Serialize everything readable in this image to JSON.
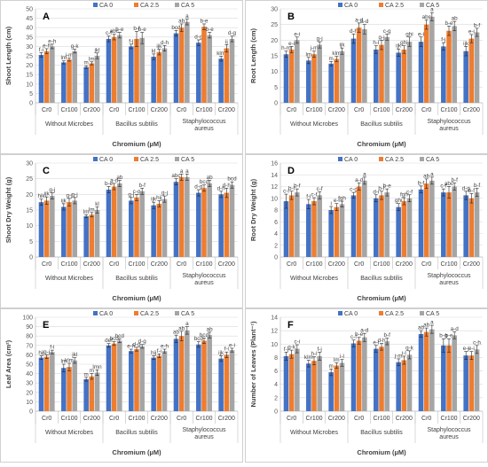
{
  "legend": {
    "series": [
      "CA 0",
      "CA 2.5",
      "CA 5"
    ],
    "colors": [
      "#4472C4",
      "#ED7D31",
      "#A5A5A5"
    ]
  },
  "x_axis": {
    "title": "Chromium (µM)",
    "groups": [
      "Without Microbes",
      "Bacillus subtilis",
      "Staphylococcus aureus"
    ],
    "levels": [
      "Cr0",
      "Cr100",
      "Cr200"
    ]
  },
  "chart_data": [
    {
      "type": "bar",
      "panel_label": "A",
      "ylabel": "Shoot Length (cm)",
      "ylim": [
        0,
        50
      ],
      "yticks": [
        0,
        5,
        10,
        15,
        20,
        25,
        30,
        35,
        40,
        45,
        50
      ],
      "categories": [
        "Cr0",
        "Cr100",
        "Cr200",
        "Cr0",
        "Cr100",
        "Cr200",
        "Cr0",
        "Cr100",
        "Cr200"
      ],
      "series": [
        {
          "name": "CA 0",
          "values": [
            25.5,
            21.5,
            19,
            34,
            30,
            24.5,
            37,
            32,
            23.5
          ],
          "errors": [
            1.2,
            0.8,
            0.7,
            1.5,
            1.2,
            1.5,
            1.5,
            1.5,
            1.3
          ]
        },
        {
          "name": "CA 2.5",
          "values": [
            27.5,
            23,
            21,
            35,
            34,
            27,
            40,
            40.5,
            29
          ],
          "errors": [
            1.3,
            0.8,
            0.8,
            1.5,
            4,
            1.5,
            2,
            1.5,
            2
          ]
        },
        {
          "name": "CA 5",
          "values": [
            30,
            27.5,
            25,
            36,
            34.5,
            29,
            43,
            36,
            34
          ],
          "errors": [
            1.2,
            1,
            1.5,
            1.5,
            3,
            1.5,
            1.5,
            1.5,
            1.5
          ]
        }
      ],
      "annotations": [
        [
          "f-i",
          "e-h",
          "e-h"
        ],
        [
          "lm",
          "j-m",
          "g-k"
        ],
        [
          "m",
          "lm",
          "jkl"
        ],
        [
          "c-f",
          "abc",
          "b-e"
        ],
        [
          "f-j",
          "b-f",
          "b-e"
        ],
        [
          "kl",
          "ijk",
          "d-h"
        ],
        [
          "bcd",
          "ab",
          "a"
        ],
        [
          "d-g",
          "b-e",
          "b-e"
        ],
        [
          "klm",
          "ij",
          "d-g"
        ]
      ]
    },
    {
      "type": "bar",
      "panel_label": "B",
      "ylabel": "Root Length (cm)",
      "ylim": [
        0,
        30
      ],
      "yticks": [
        0,
        5,
        10,
        15,
        20,
        25,
        30
      ],
      "categories": [
        "Cr0",
        "Cr100",
        "Cr200",
        "Cr0",
        "Cr100",
        "Cr200",
        "Cr0",
        "Cr100",
        "Cr200"
      ],
      "series": [
        {
          "name": "CA 0",
          "values": [
            15.5,
            13.5,
            12.5,
            20.5,
            17,
            16,
            19.5,
            18,
            16.5
          ],
          "errors": [
            1,
            1,
            0.7,
            1.5,
            1.2,
            1.2,
            1.5,
            1.2,
            1.5
          ]
        },
        {
          "name": "CA 2.5",
          "values": [
            17,
            15.5,
            14,
            24,
            18.5,
            17,
            25,
            23,
            20.5
          ],
          "errors": [
            1,
            1,
            0.8,
            1.5,
            1.5,
            1.2,
            1.5,
            1.5,
            1.3
          ]
        },
        {
          "name": "CA 5",
          "values": [
            20,
            18.5,
            16.5,
            23.5,
            21,
            19.5,
            27.5,
            24.5,
            22.5
          ],
          "errors": [
            1,
            1,
            1,
            1.5,
            1,
            1.5,
            1.3,
            1.5,
            1.3
          ]
        }
      ],
      "annotations": [
        [
          "h-m",
          "e-i",
          "e-i"
        ],
        [
          "lm",
          "j-m",
          "g-j"
        ],
        [
          "m",
          "klm",
          "ijk"
        ],
        [
          "d-h",
          "a-d",
          "a-d"
        ],
        [
          "h-l",
          "g-j",
          "c-g"
        ],
        [
          "ijk",
          "ghi",
          "ghi"
        ],
        [
          "e-i",
          "abc",
          "a"
        ],
        [
          "f-j",
          "b-e",
          "ab"
        ],
        [
          "ijk",
          "e-i",
          "b-f"
        ]
      ]
    },
    {
      "type": "bar",
      "panel_label": "C",
      "ylabel": "Shoot Dry Weight (g)",
      "ylim": [
        0,
        30
      ],
      "yticks": [
        0,
        5,
        10,
        15,
        20,
        25,
        30
      ],
      "categories": [
        "Cr0",
        "Cr100",
        "Cr200",
        "Cr0",
        "Cr100",
        "Cr200",
        "Cr0",
        "Cr100",
        "Cr200"
      ],
      "series": [
        {
          "name": "CA 0",
          "values": [
            17.5,
            16,
            13,
            21.5,
            18,
            16.5,
            24,
            20.5,
            20
          ],
          "errors": [
            1,
            1,
            0.5,
            1,
            1,
            1,
            1,
            1,
            1
          ]
        },
        {
          "name": "CA 2.5",
          "values": [
            18,
            17.5,
            13.5,
            22.5,
            19,
            17,
            25.5,
            22,
            20.5
          ],
          "errors": [
            1.2,
            1.2,
            0.7,
            1,
            1,
            1,
            1,
            1,
            1.5
          ]
        },
        {
          "name": "CA 5",
          "values": [
            19.5,
            18,
            15,
            23.5,
            21,
            18.5,
            25.5,
            23.5,
            23
          ],
          "errors": [
            1,
            1,
            1,
            1,
            1,
            1,
            1,
            1,
            1
          ]
        }
      ],
      "annotations": [
        [
          "hik",
          "ijk",
          "g-j"
        ],
        [
          "ijk",
          "g-j",
          "g-j"
        ],
        [
          "lm",
          "lm",
          "kl"
        ],
        [
          "b-e",
          "a-d",
          "ab"
        ],
        [
          "g-j",
          "c-g",
          "b-f"
        ],
        [
          "ijk",
          "hij",
          "g-j"
        ],
        [
          "abc",
          "a",
          "a"
        ],
        [
          "d-g",
          "bcd",
          "ab"
        ],
        [
          "d-h",
          "d-h",
          "bcd"
        ]
      ]
    },
    {
      "type": "bar",
      "panel_label": "D",
      "ylabel": "Root Dry Weight (g)",
      "ylim": [
        0,
        16
      ],
      "yticks": [
        0,
        2,
        4,
        6,
        8,
        10,
        12,
        14,
        16
      ],
      "categories": [
        "Cr0",
        "Cr100",
        "Cr200",
        "Cr0",
        "Cr100",
        "Cr200",
        "Cr0",
        "Cr100",
        "Cr200"
      ],
      "series": [
        {
          "name": "CA 0",
          "values": [
            9.5,
            9,
            8,
            10.5,
            10,
            8.5,
            11.5,
            11,
            10.5
          ],
          "errors": [
            1.2,
            0.8,
            0.6,
            0.5,
            0.6,
            0.6,
            0.6,
            0.6,
            0.7
          ]
        },
        {
          "name": "CA 2.5",
          "values": [
            10.5,
            9.5,
            8.5,
            12,
            10.5,
            9.5,
            12.5,
            11,
            10
          ],
          "errors": [
            0.7,
            0.6,
            0.6,
            0.6,
            0.7,
            0.6,
            0.8,
            1,
            0.8
          ]
        },
        {
          "name": "CA 5",
          "values": [
            11,
            10.5,
            9,
            13,
            11,
            10,
            13,
            12,
            11
          ],
          "errors": [
            0.6,
            0.6,
            0.5,
            0.6,
            0.6,
            0.6,
            0.6,
            0.6,
            0.7
          ]
        }
      ],
      "annotations": [
        [
          "c-i",
          "b-f",
          "b-f"
        ],
        [
          "f-i",
          "c-f",
          "c-f"
        ],
        [
          "i",
          "e-i",
          "fgh"
        ],
        [
          "c-g",
          "a-d",
          "a"
        ],
        [
          "d-i",
          "b-f",
          "b-e"
        ],
        [
          "ghi",
          "fgh",
          "c-f"
        ],
        [
          "b-f",
          "ab",
          "a"
        ],
        [
          "c-f",
          "abc",
          "b-f"
        ],
        [
          "d-g",
          "b-f",
          "b-f"
        ]
      ]
    },
    {
      "type": "bar",
      "panel_label": "E",
      "ylabel": "Leaf Area (cm²)",
      "ylim": [
        0,
        100
      ],
      "yticks": [
        0,
        10,
        20,
        30,
        40,
        50,
        60,
        70,
        80,
        90,
        100
      ],
      "categories": [
        "Cr0",
        "Cr100",
        "Cr200",
        "Cr0",
        "Cr100",
        "Cr200",
        "Cr0",
        "Cr100",
        "Cr200"
      ],
      "series": [
        {
          "name": "CA 0",
          "values": [
            57,
            46,
            34,
            70,
            64,
            57,
            77,
            71,
            56
          ],
          "errors": [
            2,
            4,
            2,
            2,
            2,
            2,
            4,
            3,
            3
          ]
        },
        {
          "name": "CA 2.5",
          "values": [
            58,
            47,
            37,
            72,
            66,
            59,
            80,
            75,
            60
          ],
          "errors": [
            2,
            4,
            3,
            2,
            2,
            2,
            5,
            3,
            3
          ]
        },
        {
          "name": "CA 5",
          "values": [
            63,
            54,
            41,
            75,
            69,
            64,
            86,
            81,
            65
          ],
          "errors": [
            2,
            3,
            3,
            2,
            2,
            2,
            4,
            3,
            2
          ]
        }
      ],
      "annotations": [
        [
          "hij",
          "g-j",
          "f-i"
        ],
        [
          "lm",
          "klm",
          "jkl"
        ],
        [
          "m",
          "m",
          "lmn"
        ],
        [
          "def",
          "bcd",
          "bcd"
        ],
        [
          "e-h",
          "d-g",
          "d-g"
        ],
        [
          "hij",
          "f-i",
          "e-h"
        ],
        [
          "ab",
          "ab",
          "a"
        ],
        [
          "bcd",
          "bcd",
          "ab"
        ],
        [
          "ijk",
          "f-i",
          "e-i"
        ]
      ]
    },
    {
      "type": "bar",
      "panel_label": "F",
      "ylabel": "Number of Leaves (Plant⁻¹)",
      "ylim": [
        0,
        14
      ],
      "yticks": [
        0,
        2,
        4,
        6,
        8,
        10,
        12,
        14
      ],
      "categories": [
        "Cr0",
        "Cr100",
        "Cr200",
        "Cr0",
        "Cr100",
        "Cr200",
        "Cr0",
        "Cr100",
        "Cr200"
      ],
      "series": [
        {
          "name": "CA 0",
          "values": [
            8.2,
            7.1,
            5.8,
            10.1,
            9.3,
            7.3,
            11.5,
            9.8,
            8.3
          ],
          "errors": [
            0.6,
            0.5,
            0.5,
            0.5,
            0.5,
            0.5,
            0.5,
            1,
            0.6
          ]
        },
        {
          "name": "CA 2.5",
          "values": [
            8.5,
            7.5,
            6.8,
            10.5,
            9.6,
            7.6,
            11.8,
            9.8,
            8.3
          ],
          "errors": [
            0.6,
            0.6,
            0.4,
            0.5,
            0.5,
            0.6,
            0.6,
            1,
            0.6
          ]
        },
        {
          "name": "CA 5",
          "values": [
            9.3,
            8.2,
            7.2,
            11,
            10.4,
            8.4,
            12.2,
            11.3,
            9.2
          ],
          "errors": [
            0.6,
            0.6,
            0.5,
            0.6,
            0.5,
            0.6,
            0.6,
            0.5,
            0.6
          ]
        }
      ],
      "annotations": [
        [
          "f-j",
          "g-k",
          "c-i"
        ],
        [
          "klm",
          "h-l",
          "f-j"
        ],
        [
          "m",
          "lm",
          "i-l"
        ],
        [
          "c-f",
          "b-e",
          "a-d"
        ],
        [
          "e-i",
          "d-h",
          "b-f"
        ],
        [
          "j-m",
          "i-l",
          "g-k"
        ],
        [
          "ab",
          "ab",
          "a"
        ],
        [
          "b-g",
          "b-e",
          "a-d"
        ],
        [
          "e-j",
          "e-i",
          "c-h"
        ]
      ]
    }
  ]
}
